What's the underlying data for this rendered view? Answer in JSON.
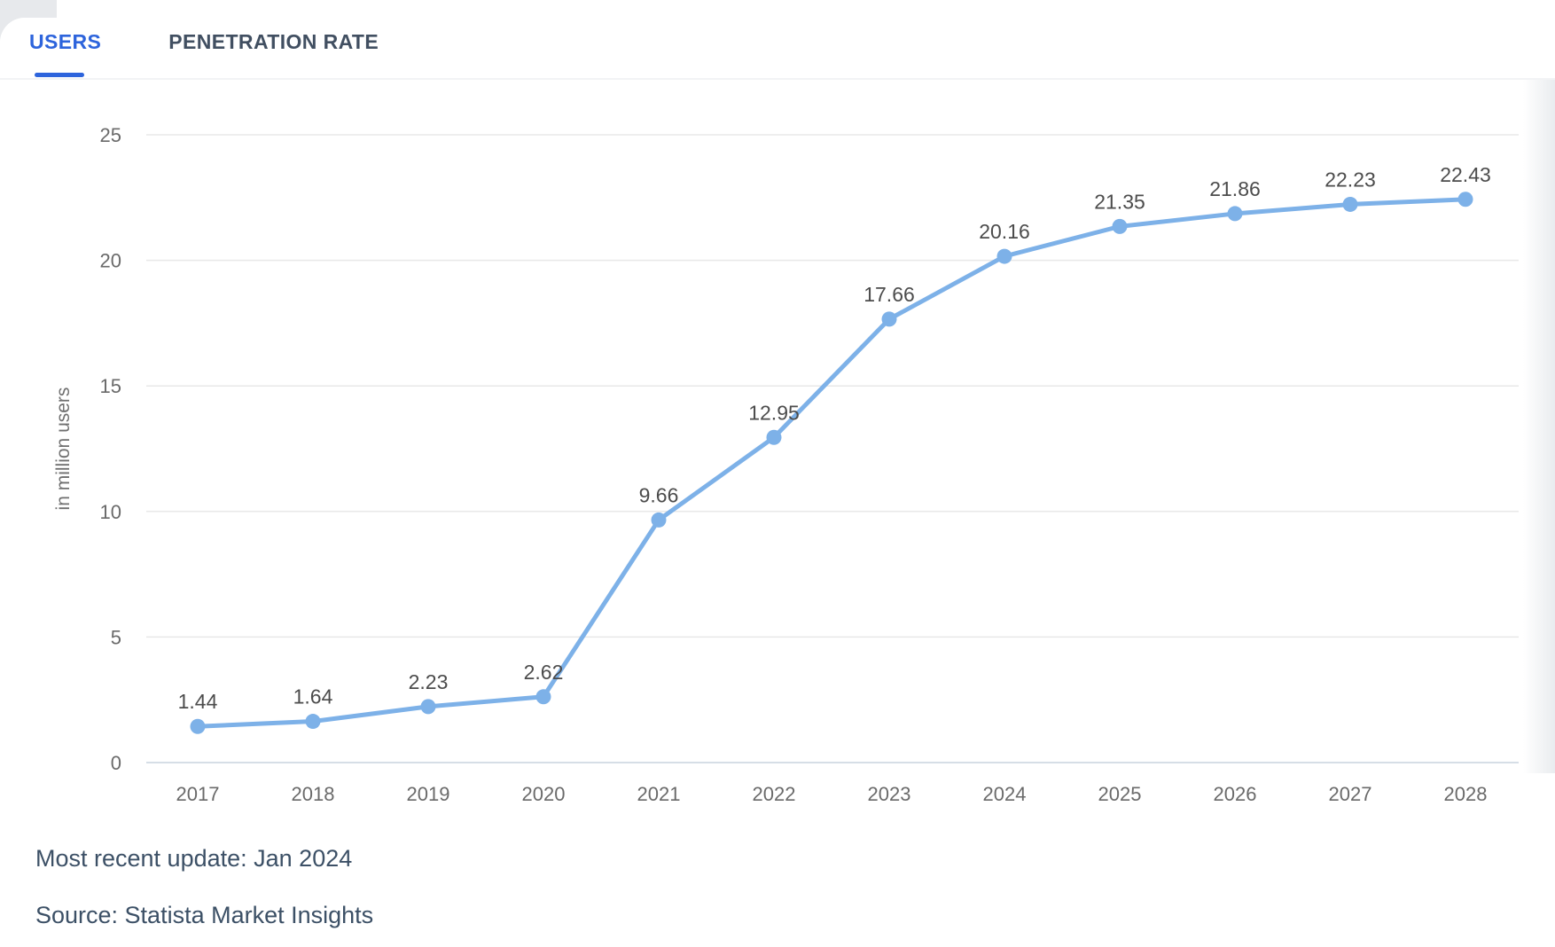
{
  "tabs": {
    "users": {
      "label": "USERS",
      "active": true
    },
    "penetration": {
      "label": "PENETRATION RATE",
      "active": false
    }
  },
  "chart_data": {
    "type": "line",
    "categories": [
      "2017",
      "2018",
      "2019",
      "2020",
      "2021",
      "2022",
      "2023",
      "2024",
      "2025",
      "2026",
      "2027",
      "2028"
    ],
    "values": [
      1.44,
      1.64,
      2.23,
      2.62,
      9.66,
      12.95,
      17.66,
      20.16,
      21.35,
      21.86,
      22.23,
      22.43
    ],
    "title": "",
    "xlabel": "",
    "ylabel": "in million users",
    "ylim": [
      0,
      25
    ],
    "yticks": [
      0,
      5,
      10,
      15,
      20,
      25
    ],
    "grid": true,
    "legend": "none",
    "value_labels": [
      "1.44",
      "1.64",
      "2.23",
      "2.62",
      "9.66",
      "12.95",
      "17.66",
      "20.16",
      "21.35",
      "21.86",
      "22.23",
      "22.43"
    ]
  },
  "footer": {
    "updated": "Most recent update: Jan 2024",
    "source": "Source: Statista Market Insights"
  },
  "colors": {
    "accent": "#2d64dc",
    "tab_inactive": "#414f61",
    "line": "#7db1e8",
    "marker": "#7db1e8",
    "value_label": "#4c4c4c",
    "axis_tick": "#6a6a6a",
    "axis_title": "#6f6f6f",
    "grid": "#e8e8e8",
    "zero_line": "#c9d4dd",
    "footer_text": "#3c5066"
  }
}
